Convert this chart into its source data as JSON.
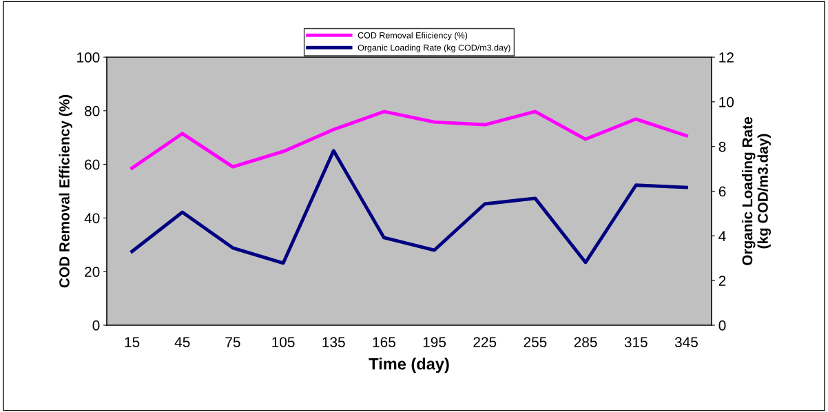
{
  "chart_data": {
    "type": "line",
    "xlabel": "Time (day)",
    "ylabel": "COD Removal Efficiency (%)",
    "y2label": "Organic Loading Rate\n(kg COD/m3.day)",
    "categories": [
      "15",
      "45",
      "75",
      "105",
      "135",
      "165",
      "195",
      "225",
      "255",
      "285",
      "315",
      "345"
    ],
    "series": [
      {
        "name": "COD Removal Efiiciency (%)",
        "color": "#ff00ff",
        "values": [
          58.6,
          71.5,
          59.1,
          64.8,
          73,
          79.7,
          75.8,
          74.8,
          79.7,
          69.4,
          76.9,
          70.7
        ]
      },
      {
        "name": "Organic Loading Rate (kg COD/m3.day)",
        "color": "#000080",
        "axis": "y2",
        "values": [
          3.3,
          5.06,
          3.46,
          2.78,
          7.81,
          3.92,
          3.36,
          5.43,
          5.68,
          2.81,
          6.27,
          6.17
        ]
      }
    ],
    "ylim": [
      0,
      100
    ],
    "yticks": [
      0,
      20,
      40,
      60,
      80,
      100
    ],
    "y2lim": [
      0,
      12
    ],
    "y2ticks": [
      0,
      2,
      4,
      6,
      8,
      10,
      12
    ],
    "grid": false,
    "legend": "top",
    "marker": "none",
    "line_style": "solid"
  }
}
